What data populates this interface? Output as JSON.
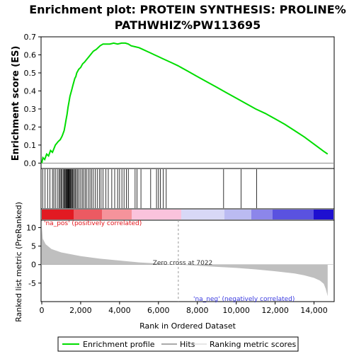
{
  "chart_data": {
    "type": "line",
    "title_lines": [
      "Enrichment plot: PROTEIN SYNTHESIS: PROLINE%",
      "PATHWHIZ%PW113695"
    ],
    "xlabel": "Rank in Ordered Dataset",
    "x_ticks": [
      0,
      2000,
      4000,
      6000,
      8000,
      10000,
      12000,
      14000
    ],
    "x_tick_labels": [
      "0",
      "2,000",
      "4,000",
      "6,000",
      "8,000",
      "10,000",
      "12,000",
      "14,000"
    ],
    "xlim": [
      0,
      15000
    ],
    "enrichment": {
      "ylabel": "Enrichment score (ES)",
      "ylim": [
        -0.03,
        0.7
      ],
      "y_ticks": [
        0.0,
        0.1,
        0.2,
        0.3,
        0.4,
        0.5,
        0.6,
        0.7
      ],
      "y_tick_labels": [
        "0.0",
        "0.1",
        "0.2",
        "0.3",
        "0.4",
        "0.5",
        "0.6",
        "0.7"
      ],
      "color": "#00dd00",
      "x": [
        0,
        60,
        150,
        250,
        350,
        450,
        550,
        700,
        850,
        950,
        1050,
        1150,
        1200,
        1250,
        1300,
        1350,
        1400,
        1450,
        1500,
        1550,
        1600,
        1650,
        1700,
        1750,
        1800,
        1900,
        2000,
        2100,
        2200,
        2350,
        2500,
        2650,
        2800,
        3000,
        3150,
        3300,
        3500,
        3700,
        3900,
        4100,
        4300,
        4450,
        4600,
        4800,
        5000,
        5200,
        5400,
        5600,
        5800,
        6000,
        6200,
        6400,
        6700,
        7000,
        7500,
        8000,
        8500,
        9000,
        9500,
        10000,
        10500,
        11000,
        11500,
        12000,
        12500,
        13000,
        13500,
        14000,
        14500,
        14700
      ],
      "y": [
        0.0,
        0.03,
        0.02,
        0.05,
        0.04,
        0.07,
        0.06,
        0.1,
        0.12,
        0.13,
        0.15,
        0.18,
        0.21,
        0.24,
        0.27,
        0.31,
        0.34,
        0.37,
        0.39,
        0.41,
        0.43,
        0.45,
        0.47,
        0.48,
        0.5,
        0.52,
        0.53,
        0.55,
        0.56,
        0.58,
        0.6,
        0.62,
        0.63,
        0.65,
        0.66,
        0.66,
        0.66,
        0.665,
        0.66,
        0.665,
        0.665,
        0.66,
        0.65,
        0.645,
        0.64,
        0.63,
        0.62,
        0.61,
        0.6,
        0.59,
        0.58,
        0.57,
        0.555,
        0.54,
        0.51,
        0.48,
        0.45,
        0.42,
        0.39,
        0.36,
        0.33,
        0.3,
        0.275,
        0.245,
        0.215,
        0.18,
        0.145,
        0.105,
        0.065,
        0.05
      ]
    },
    "hits_x": [
      50,
      170,
      300,
      420,
      550,
      620,
      700,
      800,
      880,
      940,
      990,
      1040,
      1100,
      1150,
      1190,
      1230,
      1260,
      1290,
      1320,
      1350,
      1380,
      1410,
      1440,
      1470,
      1500,
      1540,
      1580,
      1630,
      1680,
      1730,
      1790,
      1850,
      1920,
      2000,
      2080,
      2150,
      2230,
      2300,
      2400,
      2480,
      2560,
      2650,
      2750,
      2850,
      2960,
      3050,
      3150,
      3300,
      3420,
      3600,
      3750,
      3900,
      4000,
      4120,
      4230,
      4350,
      4450,
      4800,
      4900,
      5100,
      5600,
      5900,
      6000,
      6100,
      6250,
      6400,
      9350,
      10250,
      11050
    ],
    "metric": {
      "ylabel": "Ranked list metric (PreRanked)",
      "ylim": [
        -10,
        12
      ],
      "y_ticks": [
        -5,
        0,
        5,
        10
      ],
      "y_tick_labels": [
        "-5",
        "0",
        "5",
        "10"
      ],
      "zero_cross_label": "Zero cross at 7022",
      "zero_cross_x": 7022,
      "pos_label": "'na_pos' (positively correlated)",
      "neg_label": "'na_neg' (negatively correlated)",
      "x": [
        0,
        50,
        200,
        500,
        1000,
        2000,
        3000,
        4000,
        5000,
        6000,
        7022,
        8000,
        9000,
        10000,
        11000,
        12000,
        13000,
        13500,
        14000,
        14300,
        14500,
        14600,
        14650,
        14700
      ],
      "y": [
        10.5,
        7.0,
        5.5,
        4.2,
        3.3,
        2.3,
        1.6,
        1.1,
        0.6,
        0.3,
        0.0,
        -0.3,
        -0.6,
        -0.9,
        -1.3,
        -1.8,
        -2.4,
        -2.9,
        -3.6,
        -4.3,
        -5.2,
        -6.5,
        -7.5,
        -8.5
      ]
    },
    "legend": {
      "items": [
        "Enrichment profile",
        "Hits",
        "Ranking metric scores"
      ],
      "colors": [
        "#00dd00",
        "#555555",
        "#cccccc"
      ],
      "placement": "bottom"
    }
  }
}
